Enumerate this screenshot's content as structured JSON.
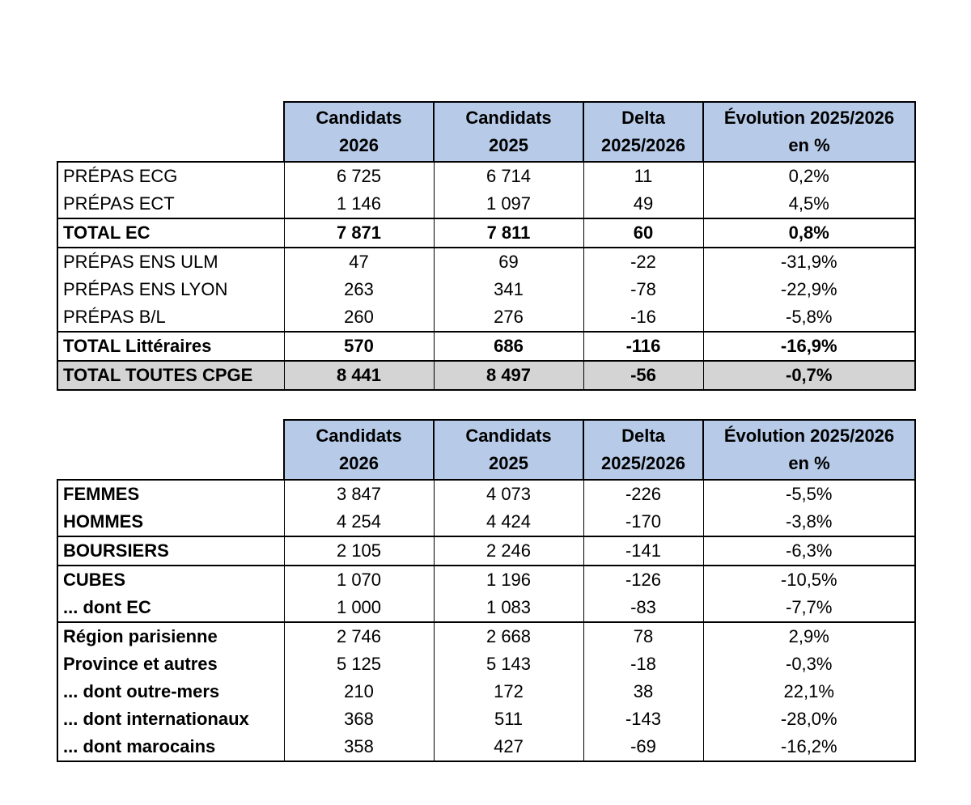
{
  "tables": [
    {
      "header": [
        [
          "Candidats",
          "2026"
        ],
        [
          "Candidats",
          "2025"
        ],
        [
          "Delta",
          "2025/2026"
        ],
        [
          "Évolution 2025/2026",
          "en %"
        ]
      ],
      "groups": [
        [
          {
            "label": "PRÉPAS ECG",
            "values": [
              "6 725",
              "6 714",
              "11",
              "0,2%"
            ]
          },
          {
            "label": "PRÉPAS ECT",
            "values": [
              "1 146",
              "1 097",
              "49",
              "4,5%"
            ]
          }
        ],
        [
          {
            "label": "TOTAL EC",
            "values": [
              "7 871",
              "7 811",
              "60",
              "0,8%"
            ]
          }
        ],
        [
          {
            "label": "PRÉPAS ENS ULM",
            "values": [
              "47",
              "69",
              "-22",
              "-31,9%"
            ]
          },
          {
            "label": "PRÉPAS ENS LYON",
            "values": [
              "263",
              "341",
              "-78",
              "-22,9%"
            ]
          },
          {
            "label": "PRÉPAS B/L",
            "values": [
              "260",
              "276",
              "-16",
              "-5,8%"
            ]
          }
        ],
        [
          {
            "label": "TOTAL Littéraires",
            "values": [
              "570",
              "686",
              "-116",
              "-16,9%"
            ]
          }
        ],
        [
          {
            "label": "TOTAL TOUTES CPGE",
            "values": [
              "8 441",
              "8 497",
              "-56",
              "-0,7%"
            ]
          }
        ]
      ]
    },
    {
      "header": [
        [
          "Candidats",
          "2026"
        ],
        [
          "Candidats",
          "2025"
        ],
        [
          "Delta",
          "2025/2026"
        ],
        [
          "Évolution 2025/2026",
          "en %"
        ]
      ],
      "groups": [
        [
          {
            "label": "FEMMES",
            "values": [
              "3 847",
              "4 073",
              "-226",
              "-5,5%"
            ]
          },
          {
            "label": "HOMMES",
            "values": [
              "4 254",
              "4 424",
              "-170",
              "-3,8%"
            ]
          }
        ],
        [
          {
            "label": "BOURSIERS",
            "values": [
              "2 105",
              "2 246",
              "-141",
              "-6,3%"
            ]
          }
        ],
        [
          {
            "label": "CUBES",
            "values": [
              "1 070",
              "1 196",
              "-126",
              "-10,5%"
            ]
          },
          {
            "label": "... dont EC",
            "values": [
              "1 000",
              "1 083",
              "-83",
              "-7,7%"
            ]
          }
        ],
        [
          {
            "label": "Région parisienne",
            "values": [
              "2 746",
              "2 668",
              "78",
              "2,9%"
            ]
          },
          {
            "label": "Province et autres",
            "values": [
              "5 125",
              "5 143",
              "-18",
              "-0,3%"
            ]
          },
          {
            "label": "... dont outre-mers",
            "values": [
              "210",
              "172",
              "38",
              "22,1%"
            ]
          },
          {
            "label": "... dont internationaux",
            "values": [
              "368",
              "511",
              "-143",
              "-28,0%"
            ]
          },
          {
            "label": "... dont marocains",
            "values": [
              "358",
              "427",
              "-69",
              "-16,2%"
            ]
          }
        ]
      ]
    }
  ]
}
